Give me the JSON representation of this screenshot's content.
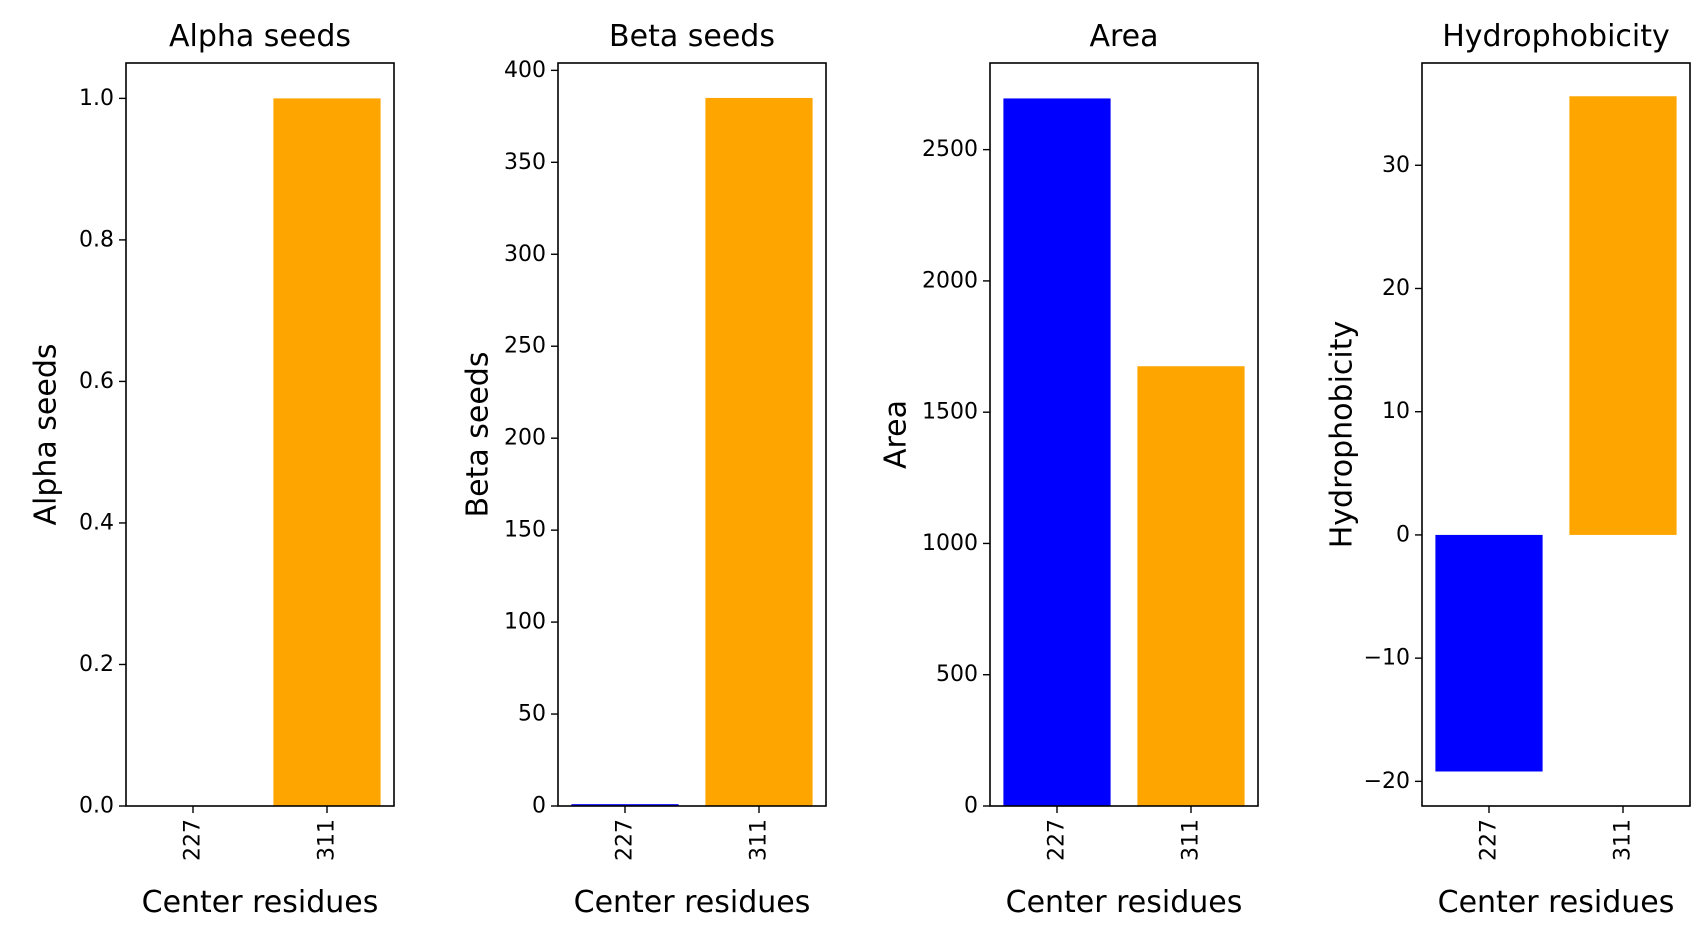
{
  "chart_data": [
    {
      "type": "bar",
      "title": "Alpha seeds",
      "xlabel": "Center residues",
      "ylabel": "Alpha seeds",
      "categories": [
        "227",
        "311"
      ],
      "values": [
        0.0,
        1.0
      ],
      "colors": [
        "#0000ff",
        "#ffa500"
      ],
      "ylim": [
        0,
        1.05
      ],
      "yticks": [
        0.0,
        0.2,
        0.4,
        0.6,
        0.8,
        1.0
      ],
      "ytick_labels": [
        "0.0",
        "0.2",
        "0.4",
        "0.6",
        "0.8",
        "1.0"
      ]
    },
    {
      "type": "bar",
      "title": "Beta seeds",
      "xlabel": "Center residues",
      "ylabel": "Beta seeds",
      "categories": [
        "227",
        "311"
      ],
      "values": [
        1,
        385
      ],
      "colors": [
        "#0000ff",
        "#ffa500"
      ],
      "ylim": [
        0,
        404
      ],
      "yticks": [
        0,
        50,
        100,
        150,
        200,
        250,
        300,
        350,
        400
      ],
      "ytick_labels": [
        "0",
        "50",
        "100",
        "150",
        "200",
        "250",
        "300",
        "350",
        "400"
      ]
    },
    {
      "type": "bar",
      "title": "Area",
      "xlabel": "Center residues",
      "ylabel": "Area",
      "categories": [
        "227",
        "311"
      ],
      "values": [
        2695,
        1675
      ],
      "colors": [
        "#0000ff",
        "#ffa500"
      ],
      "ylim": [
        0,
        2830
      ],
      "yticks": [
        0,
        500,
        1000,
        1500,
        2000,
        2500
      ],
      "ytick_labels": [
        "0",
        "500",
        "1000",
        "1500",
        "2000",
        "2500"
      ]
    },
    {
      "type": "bar",
      "title": "Hydrophobicity",
      "xlabel": "Center residues",
      "ylabel": "Hydrophobicity",
      "categories": [
        "227",
        "311"
      ],
      "values": [
        -19.2,
        35.6
      ],
      "colors": [
        "#0000ff",
        "#ffa500"
      ],
      "ylim": [
        -22,
        38.3
      ],
      "yticks": [
        -20,
        -10,
        0,
        10,
        20,
        30
      ],
      "ytick_labels": [
        "−20",
        "−10",
        "0",
        "10",
        "20",
        "30"
      ]
    }
  ]
}
